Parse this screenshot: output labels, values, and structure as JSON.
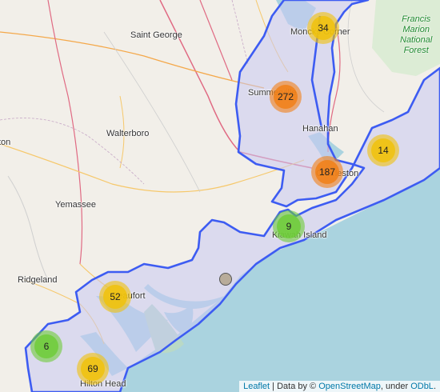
{
  "places": {
    "saint_george": "Saint George",
    "walterboro": "Walterboro",
    "yemassee": "Yemassee",
    "ridgeland": "Ridgeland",
    "moncks_corner": "Moncks Corner",
    "summerville": "Summerville",
    "hanahan": "Hanahan",
    "charleston": "Charleston",
    "kiawah_island": "Kiawah Island",
    "beaufort": "Beaufort",
    "hilton_head": "Hilton Head",
    "partial_left": "ton"
  },
  "forest_label": [
    "Francis",
    "Marion",
    "National",
    "Forest"
  ],
  "clusters": [
    {
      "name": "cluster-moncks-corner",
      "count": "34",
      "size": "medium"
    },
    {
      "name": "cluster-summerville",
      "count": "272",
      "size": "large"
    },
    {
      "name": "cluster-charleston",
      "count": "187",
      "size": "large"
    },
    {
      "name": "cluster-mount-pleasant",
      "count": "14",
      "size": "medium"
    },
    {
      "name": "cluster-kiawah",
      "count": "9",
      "size": "small"
    },
    {
      "name": "cluster-beaufort",
      "count": "52",
      "size": "medium"
    },
    {
      "name": "cluster-west",
      "count": "6",
      "size": "small"
    },
    {
      "name": "cluster-hilton-head",
      "count": "69",
      "size": "medium"
    }
  ],
  "attribution": {
    "leaflet": "Leaflet",
    "sep1": " | Data by © ",
    "osm": "OpenStreetMap",
    "sep2": ", under ",
    "odbl": "ODbL",
    "end": "."
  },
  "colors": {
    "water": "#aad3df",
    "land": "#f2efe9",
    "region_fill": "#c9c9f2",
    "region_stroke": "#3d5cf2",
    "cluster_small": "#6ecc39",
    "cluster_medium": "#f0c20c",
    "cluster_large": "#f18017"
  }
}
